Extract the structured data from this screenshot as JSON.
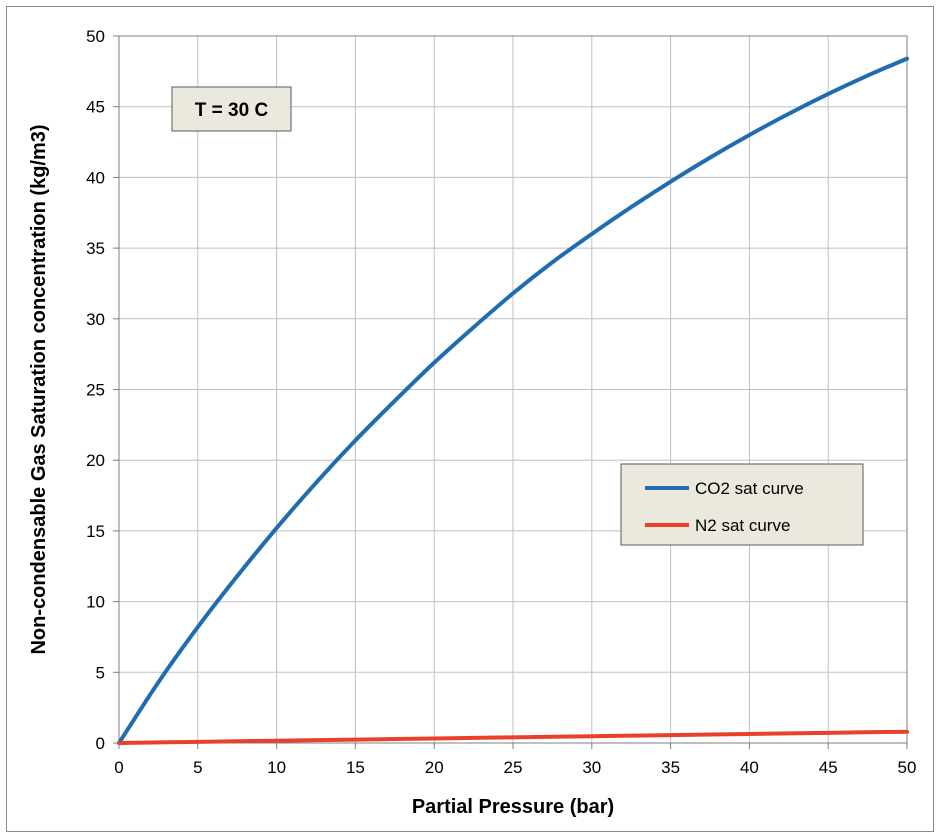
{
  "chart_data": {
    "type": "line",
    "title": "",
    "xlabel": "Partial Pressure (bar)",
    "ylabel": "Non-condensable Gas Saturation concentration (kg/m3)",
    "xlim": [
      0,
      50
    ],
    "ylim": [
      0,
      50
    ],
    "xticks": [
      0,
      5,
      10,
      15,
      20,
      25,
      30,
      35,
      40,
      45,
      50
    ],
    "yticks": [
      0,
      5,
      10,
      15,
      20,
      25,
      30,
      35,
      40,
      45,
      50
    ],
    "grid": true,
    "annotation": "T = 30 C",
    "legend_position": "center-right",
    "series": [
      {
        "name": "CO2 sat curve",
        "color": "#1f6cb0",
        "x": [
          0,
          2.5,
          5,
          7.5,
          10,
          12.5,
          15,
          17.5,
          20,
          22.5,
          25,
          27.5,
          30,
          32.5,
          35,
          37.5,
          40,
          42.5,
          45,
          47.5,
          50
        ],
        "y": [
          0,
          4.3,
          8.2,
          11.8,
          15.2,
          18.4,
          21.4,
          24.2,
          26.9,
          29.4,
          31.8,
          34.0,
          36.0,
          37.9,
          39.7,
          41.4,
          43.0,
          44.5,
          45.9,
          47.2,
          48.4
        ]
      },
      {
        "name": "N2 sat curve",
        "color": "#e8402a",
        "x": [
          0,
          5,
          10,
          15,
          20,
          25,
          30,
          35,
          40,
          45,
          50
        ],
        "y": [
          0,
          0.08,
          0.16,
          0.24,
          0.32,
          0.4,
          0.48,
          0.56,
          0.64,
          0.72,
          0.8
        ]
      }
    ]
  }
}
